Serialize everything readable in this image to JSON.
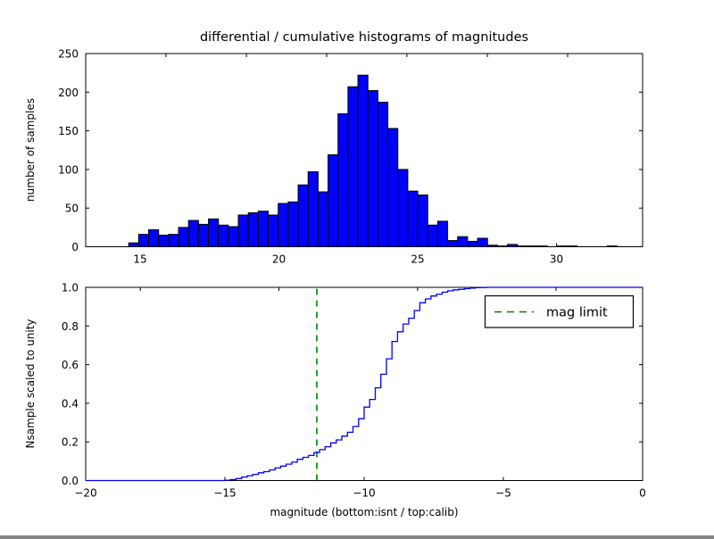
{
  "figure": {
    "title": "differential / cumulative histograms of magnitudes",
    "background": "#ffffff",
    "text_color": "#000000"
  },
  "chart_data": [
    {
      "type": "bar",
      "name": "differential-histogram",
      "title": "",
      "ylabel": "number of samples",
      "xlabel": "",
      "xlim": [
        13.04,
        33.1
      ],
      "ylim": [
        0,
        250
      ],
      "xticks": [
        15,
        20,
        25,
        30
      ],
      "xtick_labels": [
        "15",
        "20",
        "25",
        "30"
      ],
      "yticks": [
        0,
        50,
        100,
        150,
        200,
        250
      ],
      "ytick_labels": [
        "0",
        "50",
        "100",
        "150",
        "200",
        "250"
      ],
      "top_spine_ticks": [
        15.93,
        18.83,
        21.72,
        24.61,
        27.51,
        30.4
      ],
      "grid": false,
      "bar_color": "#0000ff",
      "bar_edge_color": "#000000",
      "bins_start": 14.59,
      "bin_width": 0.359,
      "values": [
        5,
        16,
        22,
        15,
        16,
        25,
        34,
        29,
        36,
        28,
        26,
        41,
        44,
        46,
        41,
        56,
        58,
        80,
        97,
        71,
        119,
        172,
        207,
        222,
        202,
        187,
        153,
        100,
        72,
        67,
        28,
        33,
        8,
        13,
        7,
        11,
        2,
        1,
        3,
        1,
        1,
        1,
        0,
        1,
        1,
        0,
        0,
        0,
        1,
        0
      ]
    },
    {
      "type": "line",
      "name": "cumulative-histogram",
      "title": "",
      "ylabel": "Nsample scaled to unity",
      "xlabel": "magnitude (bottom:isnt / top:calib)",
      "xlim": [
        -20,
        0
      ],
      "ylim": [
        0.0,
        1.0
      ],
      "xticks": [
        -20,
        -15,
        -10,
        -5,
        0
      ],
      "xtick_labels": [
        "−20",
        "−15",
        "−10",
        "−5",
        "0"
      ],
      "yticks": [
        0.0,
        0.2,
        0.4,
        0.6,
        0.8,
        1.0
      ],
      "ytick_labels": [
        "0.0",
        "0.2",
        "0.4",
        "0.6",
        "0.8",
        "1.0"
      ],
      "top_spine_ticks": [
        -18.04,
        -13.06,
        -8.08,
        -3.11
      ],
      "grid": false,
      "line_color": "#0000ff",
      "step_style": "post",
      "steps": [
        [
          -15.0,
          0.002
        ],
        [
          -14.8,
          0.005
        ],
        [
          -14.6,
          0.01
        ],
        [
          -14.4,
          0.018
        ],
        [
          -14.2,
          0.025
        ],
        [
          -14.0,
          0.032
        ],
        [
          -13.8,
          0.04
        ],
        [
          -13.6,
          0.046
        ],
        [
          -13.4,
          0.055
        ],
        [
          -13.2,
          0.065
        ],
        [
          -13.0,
          0.075
        ],
        [
          -12.8,
          0.085
        ],
        [
          -12.6,
          0.095
        ],
        [
          -12.4,
          0.11
        ],
        [
          -12.2,
          0.12
        ],
        [
          -12.0,
          0.13
        ],
        [
          -11.8,
          0.145
        ],
        [
          -11.6,
          0.16
        ],
        [
          -11.4,
          0.175
        ],
        [
          -11.2,
          0.195
        ],
        [
          -11.0,
          0.21
        ],
        [
          -10.8,
          0.23
        ],
        [
          -10.6,
          0.25
        ],
        [
          -10.4,
          0.28
        ],
        [
          -10.2,
          0.32
        ],
        [
          -10.0,
          0.38
        ],
        [
          -9.8,
          0.42
        ],
        [
          -9.6,
          0.48
        ],
        [
          -9.4,
          0.55
        ],
        [
          -9.2,
          0.63
        ],
        [
          -9.0,
          0.72
        ],
        [
          -8.8,
          0.77
        ],
        [
          -8.6,
          0.81
        ],
        [
          -8.4,
          0.84
        ],
        [
          -8.2,
          0.88
        ],
        [
          -8.0,
          0.92
        ],
        [
          -7.8,
          0.94
        ],
        [
          -7.6,
          0.955
        ],
        [
          -7.4,
          0.965
        ],
        [
          -7.2,
          0.975
        ],
        [
          -7.0,
          0.982
        ],
        [
          -6.8,
          0.987
        ],
        [
          -6.6,
          0.99
        ],
        [
          -6.4,
          0.993
        ],
        [
          -6.2,
          0.996
        ],
        [
          -6.0,
          0.998
        ],
        [
          -5.8,
          0.999
        ],
        [
          -5.6,
          1.0
        ]
      ],
      "mag_limit_line": {
        "x": -11.7,
        "color": "#008000",
        "style": "dashed"
      },
      "legend": {
        "label": "mag limit",
        "position": "upper right",
        "sample_color": "#008000"
      }
    }
  ]
}
